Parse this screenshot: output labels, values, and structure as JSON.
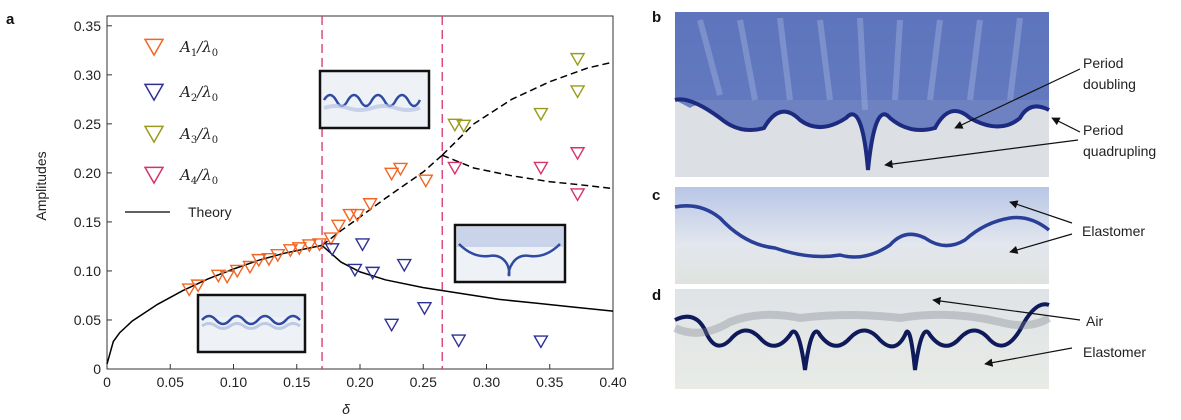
{
  "panel_labels": {
    "a": "a",
    "b": "b",
    "c": "c",
    "d": "d"
  },
  "colors": {
    "A1": "#f26522",
    "A2": "#2e3192",
    "A3": "#9a9a1e",
    "A4": "#d6336c",
    "theory": "#000000",
    "guide": "#d6336c"
  },
  "chart_data": {
    "type": "scatter",
    "xlabel": "δ",
    "ylabel": "Amplitudes",
    "xlim": [
      0,
      0.4
    ],
    "ylim": [
      0,
      0.36
    ],
    "xticks": [
      "0",
      "0.05",
      "0.10",
      "0.15",
      "0.20",
      "0.25",
      "0.30",
      "0.35",
      "0.40"
    ],
    "xtick_values": [
      0,
      0.05,
      0.1,
      0.15,
      0.2,
      0.25,
      0.3,
      0.35,
      0.4
    ],
    "yticks": [
      "0",
      "0.05",
      "0.10",
      "0.15",
      "0.20",
      "0.25",
      "0.30",
      "0.35"
    ],
    "ytick_values": [
      0,
      0.05,
      0.1,
      0.15,
      0.2,
      0.25,
      0.3,
      0.35
    ],
    "vlines": [
      0.17,
      0.265
    ],
    "legend": {
      "position": "top-left",
      "theory_label": "Theory"
    },
    "series": [
      {
        "name": "A1",
        "label_main": "A",
        "label_sub": "1",
        "label_rest": "/λ",
        "label_sub2": "0",
        "x": [
          0.065,
          0.072,
          0.088,
          0.095,
          0.103,
          0.113,
          0.12,
          0.128,
          0.135,
          0.145,
          0.152,
          0.16,
          0.168,
          0.177,
          0.183,
          0.192,
          0.198,
          0.208,
          0.225,
          0.232,
          0.252
        ],
        "y": [
          0.081,
          0.085,
          0.095,
          0.094,
          0.1,
          0.104,
          0.111,
          0.112,
          0.116,
          0.121,
          0.123,
          0.126,
          0.127,
          0.133,
          0.146,
          0.157,
          0.157,
          0.168,
          0.199,
          0.204,
          0.192
        ]
      },
      {
        "name": "A2",
        "label_main": "A",
        "label_sub": "2",
        "label_rest": "/λ",
        "label_sub2": "0",
        "x": [
          0.178,
          0.196,
          0.202,
          0.21,
          0.225,
          0.235,
          0.251,
          0.278,
          0.343
        ],
        "y": [
          0.122,
          0.101,
          0.127,
          0.098,
          0.045,
          0.106,
          0.062,
          0.029,
          0.028
        ]
      },
      {
        "name": "A3",
        "label_main": "A",
        "label_sub": "3",
        "label_rest": "/λ",
        "label_sub2": "0",
        "x": [
          0.275,
          0.282,
          0.343,
          0.372,
          0.372
        ],
        "y": [
          0.249,
          0.248,
          0.26,
          0.283,
          0.316
        ]
      },
      {
        "name": "A4",
        "label_main": "A",
        "label_sub": "4",
        "label_rest": "/λ",
        "label_sub2": "0",
        "x": [
          0.275,
          0.343,
          0.372,
          0.372
        ],
        "y": [
          0.205,
          0.205,
          0.22,
          0.178
        ]
      }
    ],
    "theory": {
      "base_x": [
        0.0,
        0.005,
        0.01,
        0.02,
        0.04,
        0.06,
        0.08,
        0.1,
        0.12,
        0.14,
        0.17
      ],
      "base_y": [
        0.005,
        0.028,
        0.037,
        0.049,
        0.066,
        0.08,
        0.092,
        0.102,
        0.111,
        0.118,
        0.126
      ],
      "lower_x": [
        0.17,
        0.185,
        0.2,
        0.22,
        0.25,
        0.28,
        0.31,
        0.34,
        0.37,
        0.4
      ],
      "lower_y": [
        0.126,
        0.109,
        0.099,
        0.091,
        0.083,
        0.077,
        0.071,
        0.067,
        0.063,
        0.059
      ],
      "dash_upper_x": [
        0.17,
        0.185,
        0.2,
        0.22,
        0.25,
        0.265
      ],
      "dash_upper_y": [
        0.126,
        0.141,
        0.155,
        0.174,
        0.201,
        0.218
      ],
      "dash_branch_up_x": [
        0.265,
        0.29,
        0.32,
        0.35,
        0.38,
        0.4
      ],
      "dash_branch_up_y": [
        0.218,
        0.25,
        0.275,
        0.293,
        0.307,
        0.313
      ],
      "dash_branch_down_x": [
        0.265,
        0.29,
        0.32,
        0.35,
        0.38,
        0.4
      ],
      "dash_branch_down_y": [
        0.218,
        0.205,
        0.197,
        0.191,
        0.187,
        0.184
      ]
    }
  },
  "annotations": {
    "b_period_doubling": "Period doubling",
    "b_period_quadrupling": "Period quadrupling",
    "c_elastomer": "Elastomer",
    "d_air": "Air",
    "d_elastomer": "Elastomer"
  }
}
